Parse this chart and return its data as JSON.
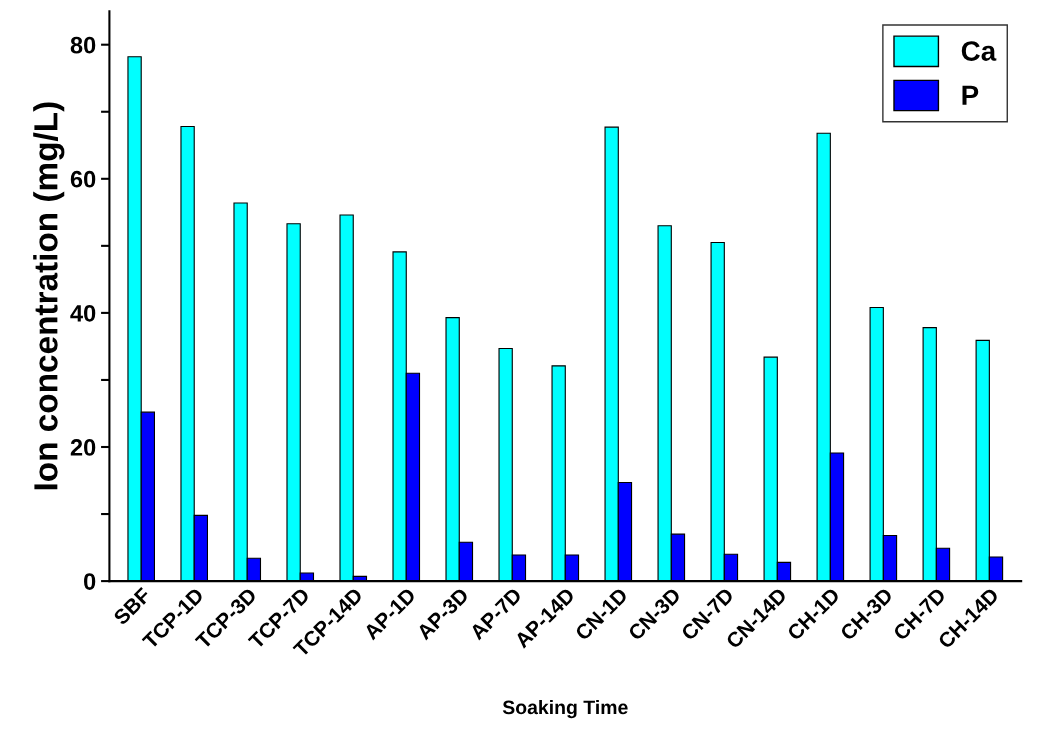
{
  "chart_data": {
    "type": "bar",
    "xlabel": "Soaking Time",
    "ylabel": "Ion concentration (mg/L)",
    "categories": [
      "SBF",
      "TCP-1D",
      "TCP-3D",
      "TCP-7D",
      "TCP-14D",
      "AP-1D",
      "AP-3D",
      "AP-7D",
      "AP-14D",
      "CN-1D",
      "CN-3D",
      "CN-7D",
      "CN-14D",
      "CH-1D",
      "CH-3D",
      "CH-7D",
      "CH-14D"
    ],
    "series": [
      {
        "name": "Ca",
        "color": "#00ffff",
        "values": [
          78.2,
          67.8,
          56.4,
          53.3,
          54.6,
          49.1,
          39.3,
          34.7,
          32.1,
          67.7,
          53.0,
          50.5,
          33.4,
          66.8,
          40.8,
          37.8,
          35.9
        ]
      },
      {
        "name": "P",
        "color": "#0000ff",
        "values": [
          25.2,
          9.8,
          3.4,
          1.2,
          0.7,
          31.0,
          5.8,
          3.9,
          3.9,
          14.7,
          7.0,
          4.0,
          2.8,
          19.1,
          6.8,
          4.9,
          3.6
        ]
      }
    ],
    "ylim": [
      0,
      85
    ],
    "yticks": [
      0,
      {
        "value": 10,
        "label": null
      },
      20,
      {
        "value": 30,
        "label": null
      },
      40,
      {
        "value": 50,
        "label": null
      },
      60,
      {
        "value": 70,
        "label": null
      },
      80
    ],
    "grid": false,
    "legend": "top right"
  }
}
